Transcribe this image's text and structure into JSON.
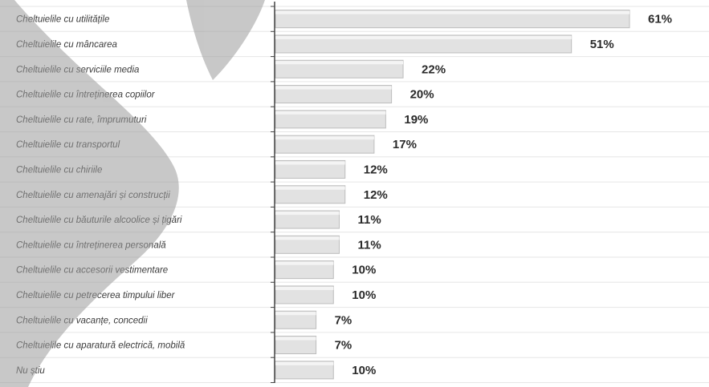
{
  "chart_data": {
    "type": "bar",
    "orientation": "horizontal",
    "categories": [
      "Cheltuielile cu utilitățile",
      "Cheltuielile cu mâncarea",
      "Cheltuielile cu serviciile media",
      "Cheltuielile cu întreținerea copiilor",
      "Cheltuielile cu rate, împrumuturi",
      "Cheltuielile cu transportul",
      "Cheltuielile cu chiriile",
      "Cheltuielile cu amenajări și construcții",
      "Cheltuielile cu băuturile alcoolice și țigări",
      "Cheltuielile cu întreținerea personală",
      "Cheltuielile cu accesorii vestimentare",
      "Cheltuielile cu petrecerea timpului liber",
      "Cheltuielile cu vacanțe, concedii",
      "Cheltuielile cu aparatură electrică, mobilă",
      "Nu știu"
    ],
    "values": [
      61,
      51,
      22,
      20,
      19,
      17,
      12,
      12,
      11,
      11,
      10,
      10,
      7,
      7,
      10
    ],
    "value_labels": [
      "61%",
      "51%",
      "22%",
      "20%",
      "19%",
      "17%",
      "12%",
      "12%",
      "11%",
      "11%",
      "10%",
      "10%",
      "7%",
      "7%",
      "10%"
    ],
    "title": "",
    "xlabel": "",
    "ylabel": "",
    "xlim": [
      0,
      61
    ],
    "grid": "horizontal row lines",
    "legend": "none",
    "colors": {
      "bar_fill": "#e2e2e2",
      "bar_edge": "#bdbdbd",
      "axis": "#444444",
      "grid": "#e6e6e6",
      "label_text": "#3a3a3a",
      "value_text": "#2a2a2a",
      "overlay_shape": "#9a9a9a"
    }
  }
}
